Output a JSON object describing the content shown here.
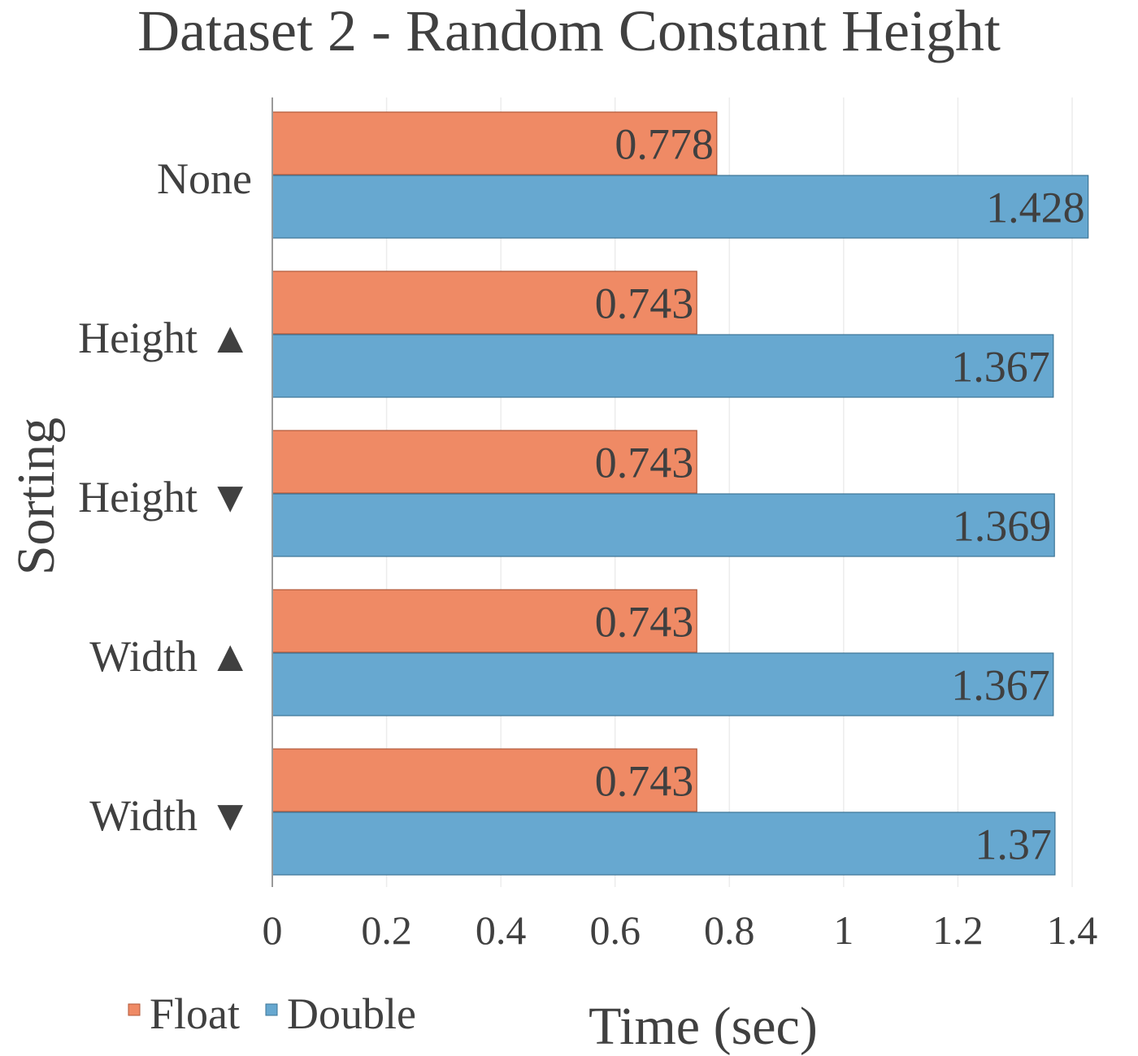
{
  "chart_data": {
    "type": "bar",
    "orientation": "horizontal",
    "title": "Dataset 2 - Random Constant Height",
    "xlabel": "Time (sec)",
    "ylabel": "Sorting",
    "categories": [
      "None",
      "Height ▲",
      "Height ▼",
      "Width ▲",
      "Width ▼"
    ],
    "series": [
      {
        "name": "Float",
        "values": [
          0.778,
          0.743,
          0.743,
          0.743,
          0.743
        ],
        "labels": [
          "0.778",
          "0.743",
          "0.743",
          "0.743",
          "0.743"
        ],
        "color": "#ef8a65",
        "stroke": "#b0583a"
      },
      {
        "name": "Double",
        "values": [
          1.428,
          1.367,
          1.369,
          1.367,
          1.37
        ],
        "labels": [
          "1.428",
          "1.367",
          "1.369",
          "1.367",
          "1.37"
        ],
        "color": "#67a8d0",
        "stroke": "#3d7596"
      }
    ],
    "xlim": [
      0,
      1.4
    ],
    "xticks": [
      0,
      0.2,
      0.4,
      0.6,
      0.8,
      1,
      1.2,
      1.4
    ],
    "xtick_labels": [
      "0",
      "0.2",
      "0.4",
      "0.6",
      "0.8",
      "1",
      "1.2",
      "1.4"
    ],
    "grid": "vertical",
    "legend": "bottom-left"
  }
}
